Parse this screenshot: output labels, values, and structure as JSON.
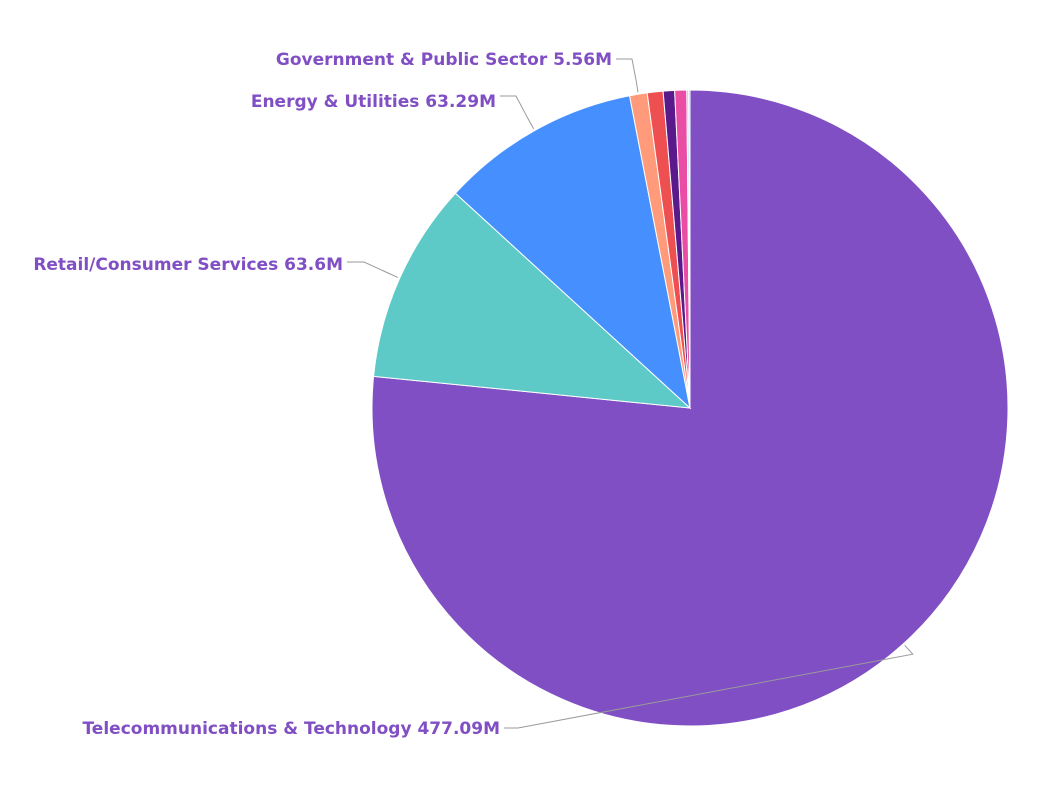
{
  "chart_data": {
    "type": "pie",
    "title": "",
    "start_angle_deg": 0,
    "direction": "clockwise",
    "legend": "none",
    "slices": [
      {
        "label": "Telecommunications & Technology",
        "value": 477.09,
        "value_label": "477.09M",
        "color": "#814fc4",
        "show_label": true
      },
      {
        "label": "Retail/Consumer Services",
        "value": 63.6,
        "value_label": "63.6M",
        "color": "#5ecac8",
        "show_label": true
      },
      {
        "label": "Energy & Utilities",
        "value": 63.29,
        "value_label": "63.29M",
        "color": "#4590fe",
        "show_label": true
      },
      {
        "label": "Government & Public Sector",
        "value": 5.56,
        "value_label": "5.56M",
        "color": "#ff9a7a",
        "show_label": true
      },
      {
        "label": "",
        "value": 5.0,
        "value_label": "",
        "color": "#ee4f50",
        "show_label": false
      },
      {
        "label": "",
        "value": 3.6,
        "value_label": "",
        "color": "#5a1a8c",
        "show_label": false
      },
      {
        "label": "",
        "value": 3.8,
        "value_label": "",
        "color": "#ea4ea4",
        "show_label": false
      },
      {
        "label": "",
        "value": 0.6,
        "value_label": "",
        "color": "#8fd6ef",
        "show_label": false
      },
      {
        "label": "",
        "value": 0.4,
        "value_label": "",
        "color": "#9b9b9b",
        "show_label": false
      }
    ]
  }
}
